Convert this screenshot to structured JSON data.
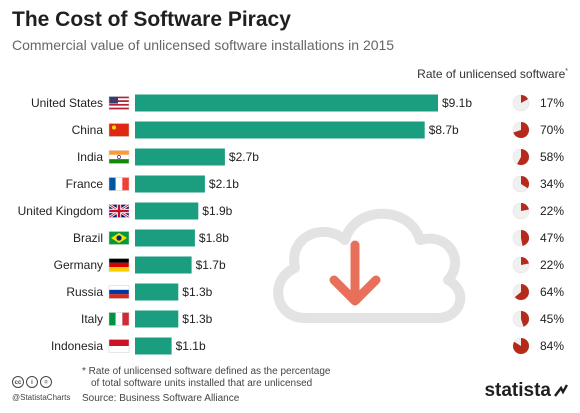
{
  "header": {
    "title": "The Cost of Software Piracy",
    "subtitle": "Commercial value of unlicensed software installations in 2015",
    "rate_label": "Rate of unlicensed software",
    "rate_marker": "*"
  },
  "footer": {
    "footnote_line1": "* Rate of unlicensed software defined as the percentage",
    "footnote_line2": "of total software units installed that are unlicensed",
    "source": "Source: Business Software Alliance",
    "handle": "@StatistaCharts",
    "brand": "statista",
    "cc_icons": [
      "cc-icon",
      "by-icon",
      "nd-icon"
    ]
  },
  "colors": {
    "bar": "#1a9e7f",
    "pie": "#b52a1a",
    "pie_bg": "#f0f0f0",
    "cloud": "#e3e3e3",
    "arrow": "#e8705a"
  },
  "chart_data": {
    "type": "bar",
    "orientation": "horizontal",
    "categories": [
      "United States",
      "China",
      "India",
      "France",
      "United Kingdom",
      "Brazil",
      "Germany",
      "Russia",
      "Italy",
      "Indonesia"
    ],
    "values": [
      9.1,
      8.7,
      2.7,
      2.1,
      1.9,
      1.8,
      1.7,
      1.3,
      1.3,
      1.1
    ],
    "value_labels": [
      "$9.1b",
      "$8.7b",
      "$2.7b",
      "$2.1b",
      "$1.9b",
      "$1.8b",
      "$1.7b",
      "$1.3b",
      "$1.3b",
      "$1.1b"
    ],
    "rates": [
      17,
      70,
      58,
      34,
      22,
      47,
      22,
      64,
      45,
      84
    ],
    "rate_labels": [
      "17%",
      "70%",
      "58%",
      "34%",
      "22%",
      "47%",
      "22%",
      "64%",
      "45%",
      "84%"
    ],
    "flags": [
      "us-flag-icon",
      "cn-flag-icon",
      "in-flag-icon",
      "fr-flag-icon",
      "gb-flag-icon",
      "br-flag-icon",
      "de-flag-icon",
      "ru-flag-icon",
      "it-flag-icon",
      "id-flag-icon"
    ],
    "xlim": [
      0,
      9.1
    ]
  }
}
